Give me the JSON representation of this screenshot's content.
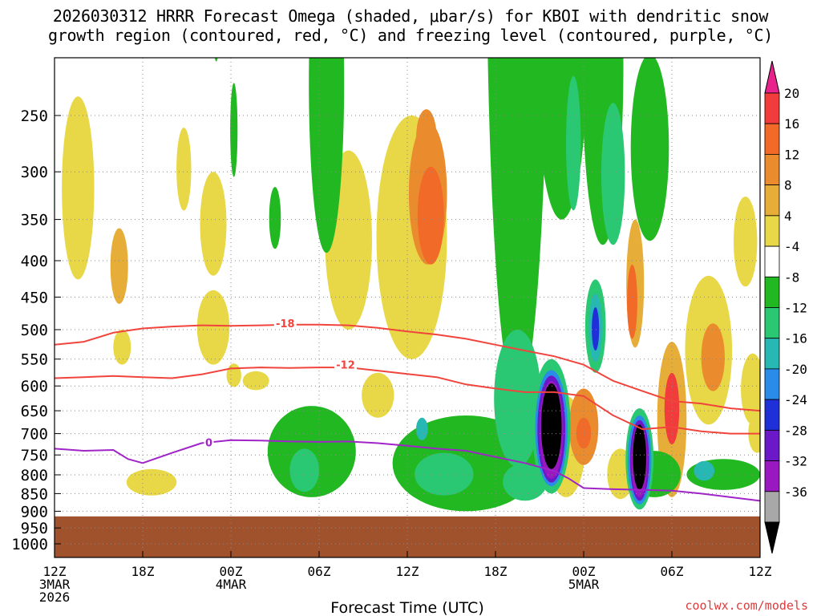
{
  "title_line1": "2026030312 HRRR Forecast Omega (shaded, μbar/s) for KBOI with dendritic snow",
  "title_line2": "growth region (contoured, red, °C) and freezing level (contoured, purple, °C)",
  "xlabel": "Forecast Time (UTC)",
  "footer": "coolwx.com/models",
  "chart_data": {
    "type": "heatmap",
    "title": "2026030312 HRRR Forecast Omega (shaded, μbar/s) for KBOI with dendritic snow growth region (contoured, red, °C) and freezing level (contoured, purple, °C)",
    "xlabel": "Forecast Time (UTC)",
    "ylabel": "",
    "x_range_hours": [
      0,
      48
    ],
    "y_range_hpa": [
      200,
      1050
    ],
    "y_scale": "log",
    "grid": true,
    "y_ticks": [
      "250",
      "300",
      "350",
      "400",
      "450",
      "500",
      "550",
      "600",
      "650",
      "700",
      "750",
      "800",
      "850",
      "900",
      "950",
      "1000"
    ],
    "x_ticks": [
      {
        "h": 0,
        "lines": [
          "12Z",
          "3MAR",
          "2026"
        ]
      },
      {
        "h": 6,
        "lines": [
          "18Z"
        ]
      },
      {
        "h": 12,
        "lines": [
          "00Z",
          "4MAR"
        ]
      },
      {
        "h": 18,
        "lines": [
          "06Z"
        ]
      },
      {
        "h": 24,
        "lines": [
          "12Z"
        ]
      },
      {
        "h": 30,
        "lines": [
          "18Z"
        ]
      },
      {
        "h": 36,
        "lines": [
          "00Z",
          "5MAR"
        ]
      },
      {
        "h": 42,
        "lines": [
          "06Z"
        ]
      },
      {
        "h": 48,
        "lines": [
          "12Z"
        ]
      }
    ],
    "colorbar": {
      "labels": [
        "20",
        "16",
        "12",
        "8",
        "4",
        "-4",
        "-8",
        "-12",
        "-16",
        "-20",
        "-24",
        "-28",
        "-32",
        "-36"
      ],
      "colors": [
        "#e8238c",
        "#f23c3c",
        "#f26a28",
        "#ea8c2e",
        "#e6ad38",
        "#e8d848",
        "#ffffff",
        "#22b822",
        "#2ac872",
        "#28b8b4",
        "#2a8ce8",
        "#2030d8",
        "#6a18c8",
        "#9a18c0",
        "#a8a8a8",
        "#000000"
      ]
    },
    "terrain": {
      "pressure_hpa": 915,
      "color": "#a0522d"
    },
    "omega_blobs": [
      {
        "x": 1.6,
        "p": 330,
        "rx": 1.1,
        "dp": 95,
        "v": 5
      },
      {
        "x": 4.4,
        "p": 410,
        "rx": 0.6,
        "dp": 50,
        "v": 7
      },
      {
        "x": 4.6,
        "p": 530,
        "rx": 0.6,
        "dp": 30,
        "v": 5
      },
      {
        "x": 6.6,
        "p": 820,
        "rx": 1.7,
        "dp": 35,
        "v": 5
      },
      {
        "x": 12.2,
        "p": 580,
        "rx": 0.5,
        "dp": 22,
        "v": 5
      },
      {
        "x": 8.8,
        "p": 300,
        "rx": 0.5,
        "dp": 40,
        "v": 5
      },
      {
        "x": 10.8,
        "p": 500,
        "rx": 1.1,
        "dp": 60,
        "v": 5
      },
      {
        "x": 10.8,
        "p": 360,
        "rx": 0.9,
        "dp": 60,
        "v": 5
      },
      {
        "x": 13.7,
        "p": 590,
        "rx": 0.9,
        "dp": 18,
        "v": 5
      },
      {
        "x": 20.0,
        "p": 390,
        "rx": 1.6,
        "dp": 110,
        "v": 5
      },
      {
        "x": 24.3,
        "p": 400,
        "rx": 2.4,
        "dp": 150,
        "v": 5
      },
      {
        "x": 25.4,
        "p": 330,
        "rx": 1.3,
        "dp": 75,
        "v": 9
      },
      {
        "x": 25.6,
        "p": 350,
        "rx": 0.9,
        "dp": 55,
        "v": 12
      },
      {
        "x": 25.3,
        "p": 270,
        "rx": 0.7,
        "dp": 25,
        "v": 9
      },
      {
        "x": 22.0,
        "p": 620,
        "rx": 1.1,
        "dp": 45,
        "v": 5
      },
      {
        "x": 34.8,
        "p": 740,
        "rx": 1.3,
        "dp": 120,
        "v": 5
      },
      {
        "x": 36.0,
        "p": 690,
        "rx": 1.0,
        "dp": 85,
        "v": 9
      },
      {
        "x": 36.0,
        "p": 700,
        "rx": 0.5,
        "dp": 35,
        "v": 14
      },
      {
        "x": 39.5,
        "p": 440,
        "rx": 0.6,
        "dp": 90,
        "v": 6
      },
      {
        "x": 39.3,
        "p": 460,
        "rx": 0.35,
        "dp": 55,
        "v": 13
      },
      {
        "x": 38.5,
        "p": 800,
        "rx": 0.9,
        "dp": 65,
        "v": 5
      },
      {
        "x": 42.0,
        "p": 690,
        "rx": 1.0,
        "dp": 170,
        "v": 7
      },
      {
        "x": 42.0,
        "p": 650,
        "rx": 0.5,
        "dp": 75,
        "v": 16
      },
      {
        "x": 44.5,
        "p": 550,
        "rx": 1.6,
        "dp": 130,
        "v": 5
      },
      {
        "x": 44.8,
        "p": 550,
        "rx": 0.8,
        "dp": 60,
        "v": 9
      },
      {
        "x": 47.0,
        "p": 380,
        "rx": 0.8,
        "dp": 55,
        "v": 5
      },
      {
        "x": 47.5,
        "p": 610,
        "rx": 0.8,
        "dp": 70,
        "v": 5
      },
      {
        "x": 47.8,
        "p": 700,
        "rx": 0.6,
        "dp": 45,
        "v": 5
      },
      {
        "x": 11.0,
        "p": 180,
        "rx": 0.25,
        "dp": 30,
        "v": -5
      },
      {
        "x": 12.2,
        "p": 265,
        "rx": 0.25,
        "dp": 40,
        "v": -5
      },
      {
        "x": 15.0,
        "p": 350,
        "rx": 0.4,
        "dp": 35,
        "v": -6
      },
      {
        "x": 18.5,
        "p": 260,
        "rx": 1.2,
        "dp": 130,
        "v": -6
      },
      {
        "x": 17.5,
        "p": 750,
        "rx": 3.0,
        "dp": 110,
        "v": -6
      },
      {
        "x": 17.0,
        "p": 790,
        "rx": 1.0,
        "dp": 55,
        "v": -10
      },
      {
        "x": 28.0,
        "p": 780,
        "rx": 5.0,
        "dp": 120,
        "v": -6
      },
      {
        "x": 26.5,
        "p": 800,
        "rx": 2.0,
        "dp": 55,
        "v": -10
      },
      {
        "x": 32.0,
        "p": 820,
        "rx": 1.5,
        "dp": 50,
        "v": -10
      },
      {
        "x": 25.0,
        "p": 690,
        "rx": 0.4,
        "dp": 25,
        "v": -14
      },
      {
        "x": 31.5,
        "p": 330,
        "rx": 2.1,
        "dp": 300,
        "v": -6
      },
      {
        "x": 31.5,
        "p": 640,
        "rx": 1.6,
        "dp": 140,
        "v": -9
      },
      {
        "x": 34.5,
        "p": 240,
        "rx": 1.7,
        "dp": 110,
        "v": -6
      },
      {
        "x": 35.3,
        "p": 280,
        "rx": 0.5,
        "dp": 60,
        "v": -10
      },
      {
        "x": 37.3,
        "p": 250,
        "rx": 1.4,
        "dp": 130,
        "v": -6
      },
      {
        "x": 38.0,
        "p": 310,
        "rx": 0.8,
        "dp": 70,
        "v": -10
      },
      {
        "x": 36.8,
        "p": 500,
        "rx": 0.7,
        "dp": 75,
        "v": -9
      },
      {
        "x": 36.8,
        "p": 500,
        "rx": 0.45,
        "dp": 55,
        "v": -14
      },
      {
        "x": 36.8,
        "p": 500,
        "rx": 0.25,
        "dp": 35,
        "v": -23
      },
      {
        "x": 40.5,
        "p": 290,
        "rx": 1.3,
        "dp": 85,
        "v": -6
      },
      {
        "x": 40.8,
        "p": 800,
        "rx": 1.8,
        "dp": 60,
        "v": -7
      },
      {
        "x": 45.5,
        "p": 800,
        "rx": 2.5,
        "dp": 40,
        "v": -6
      },
      {
        "x": 44.2,
        "p": 790,
        "rx": 0.7,
        "dp": 25,
        "v": -12
      },
      {
        "x": 33.8,
        "p": 700,
        "rx": 1.3,
        "dp": 150,
        "v": -9
      },
      {
        "x": 33.8,
        "p": 700,
        "rx": 1.1,
        "dp": 130,
        "v": -18
      },
      {
        "x": 33.8,
        "p": 700,
        "rx": 0.95,
        "dp": 120,
        "v": -26
      },
      {
        "x": 33.8,
        "p": 700,
        "rx": 0.8,
        "dp": 110,
        "v": -31
      },
      {
        "x": 33.8,
        "p": 690,
        "rx": 0.7,
        "dp": 95,
        "v": -40
      },
      {
        "x": 39.8,
        "p": 770,
        "rx": 0.95,
        "dp": 125,
        "v": -9
      },
      {
        "x": 39.8,
        "p": 770,
        "rx": 0.8,
        "dp": 110,
        "v": -18
      },
      {
        "x": 39.8,
        "p": 770,
        "rx": 0.65,
        "dp": 100,
        "v": -26
      },
      {
        "x": 39.8,
        "p": 770,
        "rx": 0.55,
        "dp": 90,
        "v": -31
      },
      {
        "x": 39.8,
        "p": 760,
        "rx": 0.45,
        "dp": 80,
        "v": -40
      }
    ],
    "contours": [
      {
        "name": "-18",
        "color": "#f0443c",
        "label_at": [
          15.7,
          490
        ],
        "x": [
          0,
          2,
          4,
          6,
          8,
          10,
          12,
          14,
          16,
          18,
          20,
          22,
          24,
          26,
          28,
          30,
          32,
          34,
          36,
          38,
          40,
          42,
          44,
          46,
          48
        ],
        "p": [
          525,
          520,
          505,
          498,
          495,
          493,
          494,
          493,
          492,
          492,
          493,
          497,
          503,
          508,
          515,
          525,
          535,
          545,
          560,
          590,
          610,
          630,
          635,
          645,
          650
        ]
      },
      {
        "name": "-12",
        "color": "#f0443c",
        "label_at": [
          19.8,
          560
        ],
        "x": [
          0,
          2,
          4,
          6,
          8,
          10,
          12,
          14,
          16,
          18,
          20,
          22,
          24,
          26,
          28,
          30,
          32,
          34,
          36,
          38,
          40,
          42,
          44,
          46,
          48
        ],
        "p": [
          585,
          583,
          581,
          583,
          585,
          578,
          567,
          565,
          566,
          565,
          565,
          571,
          577,
          583,
          597,
          605,
          612,
          612,
          620,
          660,
          690,
          685,
          695,
          700,
          700
        ]
      },
      {
        "name": "0",
        "color": "#a024c8",
        "label_at": [
          10.5,
          720
        ],
        "x": [
          0,
          2,
          4,
          5,
          6,
          8,
          10,
          12,
          14,
          16,
          18,
          20,
          22,
          24,
          26,
          28,
          30,
          32,
          34,
          35,
          36,
          38,
          40,
          42,
          44,
          46,
          48
        ],
        "p": [
          735,
          740,
          738,
          760,
          770,
          745,
          722,
          715,
          716,
          718,
          719,
          718,
          722,
          728,
          735,
          740,
          755,
          770,
          790,
          810,
          835,
          838,
          840,
          842,
          850,
          860,
          870
        ]
      }
    ]
  }
}
